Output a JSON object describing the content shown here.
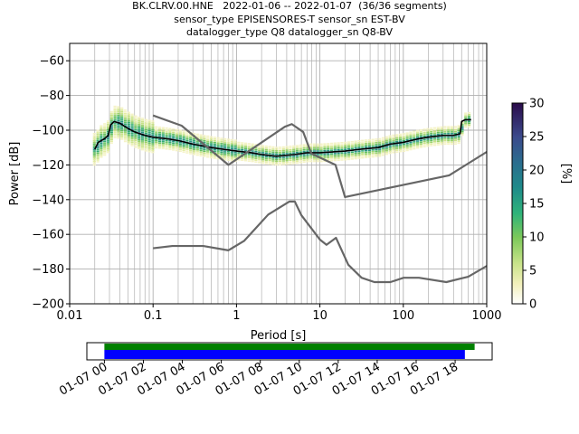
{
  "header": {
    "line1": "BK.CLRV.00.HNE   2022-01-06 -- 2022-01-07  (36/36 segments)",
    "line2": "sensor_type EPISENSORES-T sensor_sn EST-BV",
    "line3": "datalogger_type Q8 datalogger_sn Q8-BV"
  },
  "colors": {
    "mean": "#000000",
    "noise_model": "#666666",
    "grid": "#b0b0b0",
    "coverage_data": "#008000",
    "coverage_gaps": "#0000ff"
  },
  "chart_data": [
    {
      "type": "heatmap",
      "xlabel": "Period [s]",
      "ylabel": "Power [dB]",
      "xscale": "log",
      "xlim": [
        0.01,
        1000
      ],
      "ylim": [
        -200,
        -50
      ],
      "xticks": [
        0.01,
        0.1,
        1,
        10,
        100,
        1000
      ],
      "xtick_labels": [
        "0.01",
        "0.1",
        "1",
        "10",
        "100",
        "1000"
      ],
      "yticks": [
        -200,
        -180,
        -160,
        -140,
        -120,
        -100,
        -80,
        -60
      ],
      "ytick_labels": [
        "−200",
        "−180",
        "−160",
        "−140",
        "−120",
        "−100",
        "−80",
        "−60"
      ],
      "grid": true,
      "colorbar": {
        "label": "[%]",
        "range": [
          0,
          30
        ],
        "ticks": [
          0,
          5,
          10,
          15,
          20,
          25,
          30
        ],
        "tick_labels": [
          "0",
          "5",
          "10",
          "15",
          "20",
          "25",
          "30"
        ]
      },
      "series": [
        {
          "role": "mean",
          "x": [
            0.02,
            0.022,
            0.026,
            0.029,
            0.031,
            0.034,
            0.04,
            0.05,
            0.06,
            0.08,
            0.1,
            0.15,
            0.2,
            0.3,
            0.5,
            0.7,
            1,
            1.5,
            2,
            3,
            5,
            7,
            10,
            20,
            30,
            50,
            70,
            100,
            150,
            200,
            300,
            400,
            480,
            500,
            550,
            600,
            650
          ],
          "y": [
            -111,
            -107,
            -105,
            -103,
            -97,
            -95,
            -96,
            -99,
            -101,
            -103,
            -104,
            -105,
            -106,
            -108,
            -110,
            -111,
            -112,
            -113,
            -114,
            -115,
            -114,
            -113,
            -113,
            -112,
            -111,
            -110,
            -108,
            -107,
            -105,
            -104,
            -103,
            -103,
            -102,
            -95,
            -94,
            -94,
            -94
          ]
        },
        {
          "role": "high_noise_model",
          "x": [
            0.1,
            0.22,
            0.8,
            3.8,
            4.6,
            6.3,
            7.9,
            15.4,
            20,
            354.8,
            1000
          ],
          "y": [
            -91.5,
            -97.4,
            -120,
            -98,
            -96.5,
            -101,
            -113.5,
            -120,
            -138.5,
            -126,
            -112.5
          ]
        },
        {
          "role": "low_noise_model",
          "x": [
            0.1,
            0.17,
            0.4,
            0.8,
            1.24,
            2.4,
            4.3,
            5,
            6,
            10,
            12,
            15.6,
            21.9,
            31.6,
            45,
            70,
            101,
            154,
            328,
            600,
            1000
          ],
          "y": [
            -168,
            -166.7,
            -166.7,
            -169.2,
            -163.7,
            -148.6,
            -141.1,
            -141.1,
            -149,
            -163,
            -166,
            -162,
            -177.5,
            -185,
            -187.5,
            -187.5,
            -185,
            -185,
            -187.5,
            -184.4,
            -178.2
          ]
        }
      ]
    },
    {
      "type": "bar",
      "role": "data_coverage_timeline",
      "tick_labels": [
        "01-07 00",
        "01-07 02",
        "01-07 04",
        "01-07 06",
        "01-07 08",
        "01-07 10",
        "01-07 12",
        "01-07 14",
        "01-07 16",
        "01-07 18"
      ],
      "x_hours": [
        0,
        2,
        4,
        6,
        8,
        10,
        12,
        14,
        16,
        18
      ],
      "xlim_hours": [
        -0.9,
        19.9
      ],
      "bars": [
        {
          "role": "data",
          "start_hour": 0,
          "end_hour": 19.0
        },
        {
          "role": "gaps",
          "start_hour": 0,
          "end_hour": 18.5
        }
      ]
    }
  ]
}
